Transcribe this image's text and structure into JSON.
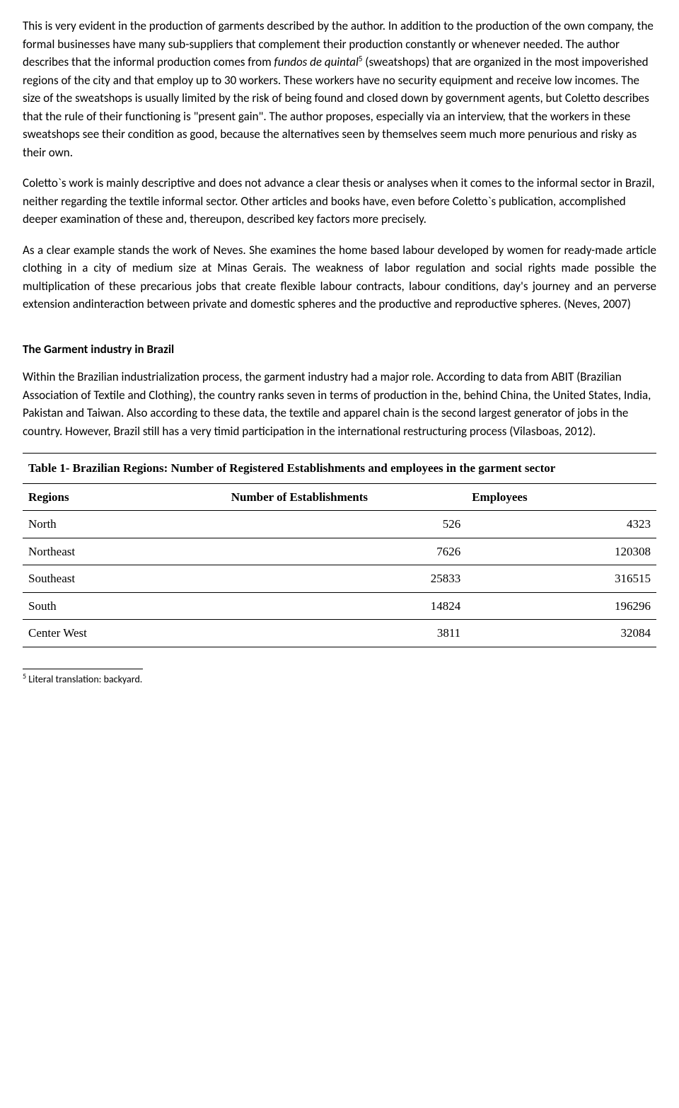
{
  "paragraphs": {
    "p1_a": "This is very evident in the production of garments described by the author. In addition to the production of the own company, the formal businesses have many sub-suppliers that complement their production constantly or whenever needed. The author describes that the informal production comes from ",
    "p1_italic": "fundos de quintal",
    "p1_sup": "5",
    "p1_b": " (sweatshops) that are organized in the most impoverished regions of the city and that employ up to 30 workers. These workers have no security equipment and receive low incomes. The size of the sweatshops is usually limited by the risk of being found and closed down by government agents, but Coletto describes that the rule of their functioning is \"present gain\". The author proposes, especially via an interview, that the workers in these sweatshops see their condition as good, because the alternatives seen by themselves seem much more penurious and risky as their own.",
    "p2": "Coletto`s work is mainly descriptive and does not advance a clear thesis or analyses when it comes to the informal sector in Brazil, neither regarding the textile informal sector. Other articles and books have, even before Coletto`s publication, accomplished deeper examination of these and, thereupon, described key factors more precisely.",
    "p3": "As a clear example stands the work of Neves. She examines the home based labour developed by women for ready-made article clothing in a city of medium size at Minas Gerais. The weakness of labor regulation and social rights made possible the multiplication of these precarious jobs that create flexible labour contracts, labour conditions, day's journey and an perverse extension andinteraction between private and domestic spheres and the productive and reproductive spheres. (Neves, 2007)"
  },
  "heading": "The Garment industry in Brazil",
  "p4": "Within the Brazilian industrialization process, the garment industry had a major role. According to data from ABIT (Brazilian Association of Textile and Clothing), the country ranks seven in terms of production in the, behind China, the United States, India, Pakistan and Taiwan. Also according to these data, the textile and apparel chain is the second largest generator of jobs in the country. However, Brazil still has a very timid participation in the international restructuring process (Vilasboas, 2012).",
  "table": {
    "caption": "Table 1- Brazilian Regions: Number of  Registered Establishments and employees in the garment sector",
    "columns": [
      "Regions",
      "Number of Establishments",
      "Employees"
    ],
    "rows": [
      [
        "North",
        "526",
        "4323"
      ],
      [
        "Northeast",
        "7626",
        "120308"
      ],
      [
        "Southeast",
        "25833",
        "316515"
      ],
      [
        "South",
        "14824",
        "196296"
      ],
      [
        "Center West",
        "3811",
        "32084"
      ]
    ],
    "col_widths": [
      "32%",
      "38%",
      "30%"
    ]
  },
  "footnote": {
    "marker": "5",
    "text": " Literal translation: backyard."
  }
}
